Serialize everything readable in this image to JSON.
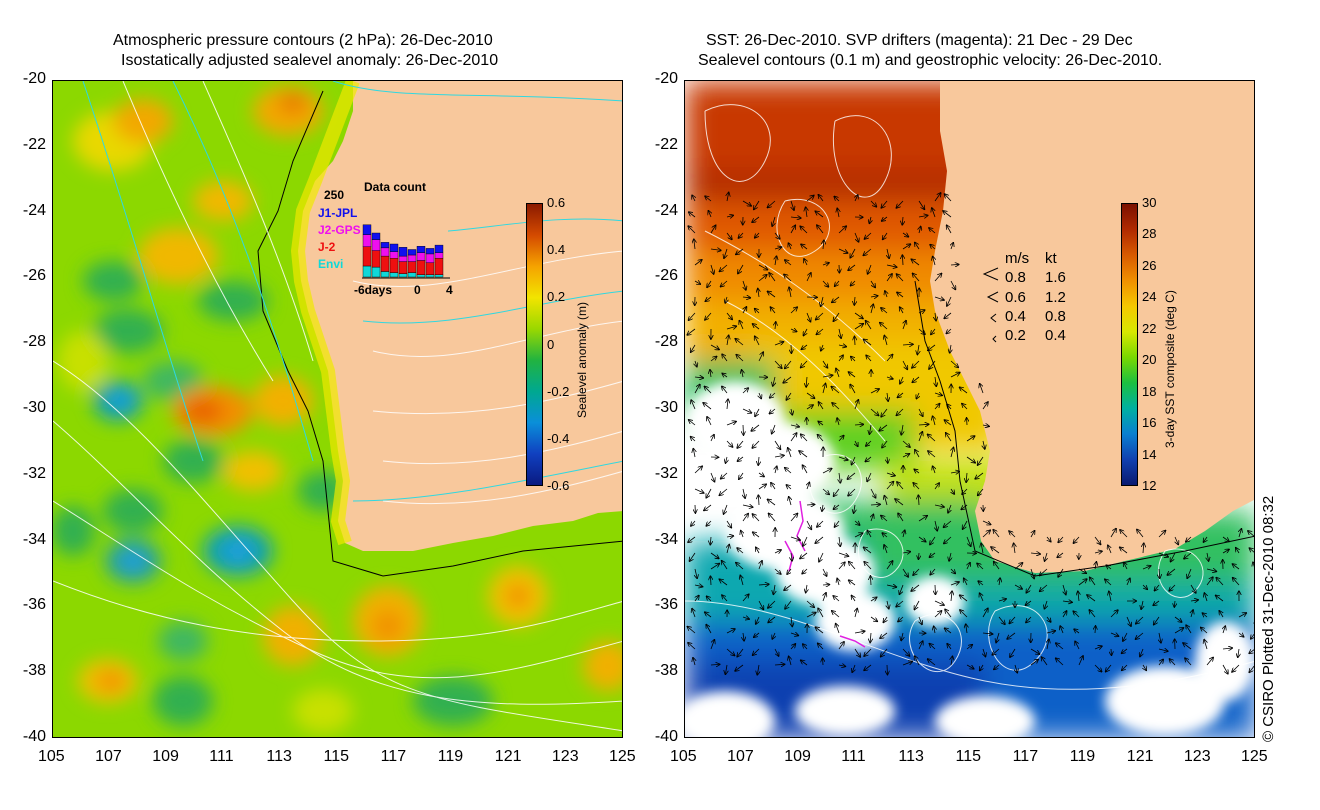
{
  "left_panel": {
    "title_line1": "Atmospheric pressure contours (2 hPa): 26-Dec-2010",
    "title_line2": "Isostatically adjusted sealevel anomaly: 26-Dec-2010",
    "colorbar": {
      "label": "Sealevel anomaly (m)",
      "ticks": [
        "0.6",
        "0.4",
        "0.2",
        "0",
        "-0.2",
        "-0.4",
        "-0.6"
      ],
      "colors": [
        "#8b1a00",
        "#d44a00",
        "#f5a300",
        "#f2e400",
        "#9ad800",
        "#22b340",
        "#00a890",
        "#0a8fd9",
        "#1040c0",
        "#0a1a80"
      ]
    },
    "data_count": {
      "title": "Data count",
      "y_tick": "250",
      "x_ticks": [
        "-6days",
        "0",
        "4"
      ],
      "series": [
        {
          "name": "J1-JPL",
          "color": "#1010ee"
        },
        {
          "name": "J2-GPS",
          "color": "#ee10ee"
        },
        {
          "name": "J-2",
          "color": "#ee1010"
        },
        {
          "name": "Envi",
          "color": "#10d8d8"
        }
      ]
    }
  },
  "right_panel": {
    "title_line1": "SST: 26-Dec-2010. SVP drifters (magenta): 21 Dec - 29 Dec",
    "title_line2": "Sealevel contours (0.1 m) and geostrophic velocity: 26-Dec-2010.",
    "colorbar": {
      "label": "3-day SST composite (deg C)",
      "ticks": [
        "30",
        "28",
        "26",
        "24",
        "22",
        "20",
        "18",
        "16",
        "14",
        "12"
      ],
      "colors": [
        "#7a1000",
        "#b02a00",
        "#d85a00",
        "#f09000",
        "#f5c800",
        "#d8e800",
        "#7ad800",
        "#1cc040",
        "#00b0a0",
        "#0a7fd0",
        "#1040b0",
        "#0a1a70"
      ]
    },
    "velocity_legend": {
      "header_ms": "m/s",
      "header_kt": "kt",
      "rows": [
        {
          "ms": "0.8",
          "kt": "1.6"
        },
        {
          "ms": "0.6",
          "kt": "1.2"
        },
        {
          "ms": "0.4",
          "kt": "0.8"
        },
        {
          "ms": "0.2",
          "kt": "0.4"
        }
      ]
    }
  },
  "axes": {
    "lat_labels": [
      "-20",
      "-22",
      "-24",
      "-26",
      "-28",
      "-30",
      "-32",
      "-34",
      "-36",
      "-38",
      "-40"
    ],
    "lon_labels": [
      "105",
      "107",
      "109",
      "111",
      "113",
      "115",
      "117",
      "119",
      "121",
      "123",
      "125"
    ]
  },
  "copyright": "© CSIRO Plotted 31-Dec-2010 08:32",
  "colors": {
    "land": "#f8c89c",
    "coastline": "#000000",
    "contour_white": "#ffffff",
    "contour_cyan": "#30d8e0",
    "drifter": "#e020e0"
  }
}
